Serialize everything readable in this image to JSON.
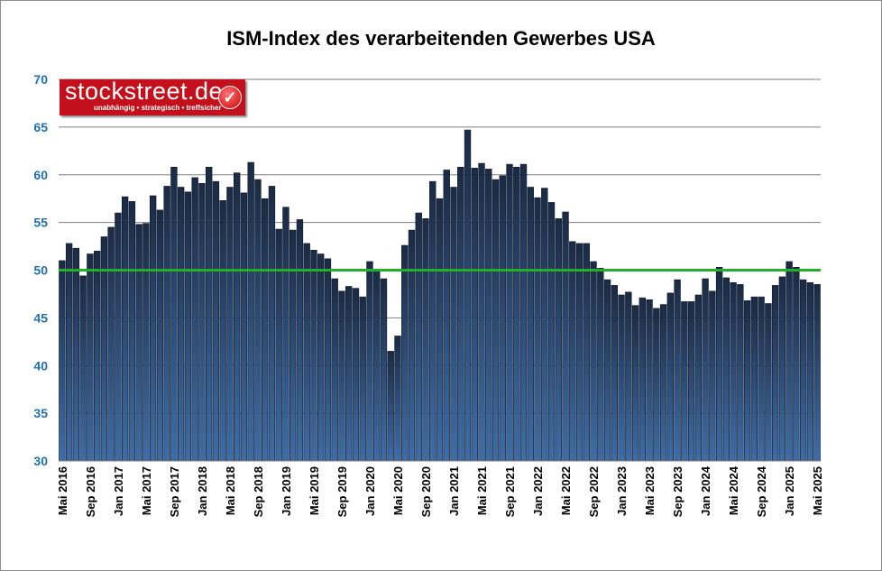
{
  "chart_data": {
    "type": "bar",
    "title": "ISM-Index des verarbeitenden Gewerbes USA",
    "ylim": [
      30,
      70
    ],
    "yticks": [
      30,
      35,
      40,
      45,
      50,
      55,
      60,
      65,
      70
    ],
    "grid": true,
    "reference_line": {
      "value": 50,
      "color": "#22b02a"
    },
    "bar_color": "#1f3150",
    "tick_labels": [
      "Mai 2016",
      "Sep 2016",
      "Jan 2017",
      "Mai 2017",
      "Sep 2017",
      "Jan 2018",
      "Mai 2018",
      "Sep 2018",
      "Jan 2019",
      "Mai 2019",
      "Sep 2019",
      "Jan 2020",
      "Mai 2020",
      "Sep 2020",
      "Jan 2021",
      "Mai 2021",
      "Sep 2021",
      "Jan 2022",
      "Mai 2022",
      "Sep 2022",
      "Jan 2023",
      "Mai 2023",
      "Sep 2023",
      "Jan 2024",
      "Mai 2024",
      "Sep 2024",
      "Jan 2025",
      "Mai 2025"
    ],
    "values": [
      51.0,
      52.8,
      52.3,
      49.4,
      51.7,
      52.0,
      53.5,
      54.5,
      56.0,
      57.7,
      57.2,
      54.8,
      54.9,
      57.8,
      56.3,
      58.8,
      60.8,
      58.7,
      58.2,
      59.7,
      59.1,
      60.8,
      59.3,
      57.3,
      58.7,
      60.2,
      58.1,
      61.3,
      59.5,
      57.5,
      58.8,
      54.3,
      56.6,
      54.2,
      55.3,
      52.8,
      52.1,
      51.7,
      51.2,
      49.1,
      47.8,
      48.3,
      48.1,
      47.2,
      50.9,
      50.1,
      49.1,
      41.5,
      43.1,
      52.6,
      54.2,
      56.0,
      55.4,
      59.3,
      57.5,
      60.5,
      58.7,
      60.8,
      64.7,
      60.7,
      61.2,
      60.6,
      59.5,
      59.9,
      61.1,
      60.8,
      61.1,
      58.7,
      57.6,
      58.6,
      57.1,
      55.4,
      56.1,
      53.0,
      52.8,
      52.8,
      50.9,
      50.2,
      49.0,
      48.4,
      47.4,
      47.7,
      46.3,
      47.1,
      46.9,
      46.0,
      46.4,
      47.6,
      49.0,
      46.7,
      46.7,
      47.4,
      49.1,
      47.8,
      50.3,
      49.2,
      48.7,
      48.5,
      46.8,
      47.2,
      47.2,
      46.5,
      48.4,
      49.3,
      50.9,
      50.3,
      49.0,
      48.7,
      48.5
    ]
  },
  "logo": {
    "name": "stockstreet.de",
    "slogan": "unabhängig • strategisch • treffsicher"
  }
}
